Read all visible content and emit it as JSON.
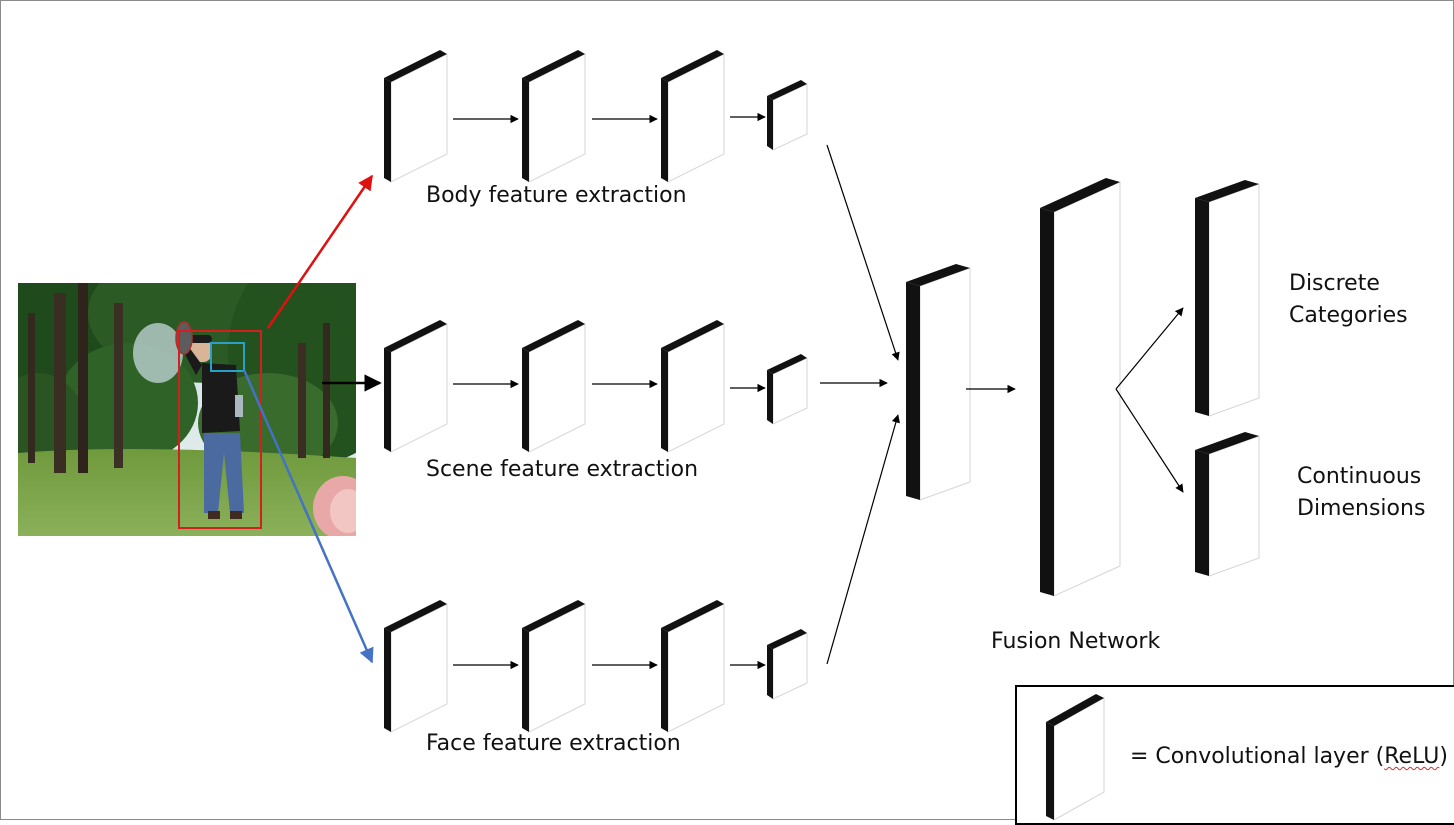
{
  "labels": {
    "body": "Body feature extraction",
    "scene": "Scene feature extraction",
    "face": "Face feature extraction",
    "fusion": "Fusion Network",
    "discrete_line1": "Discrete",
    "discrete_line2": "Categories",
    "continuous_line1": "Continuous",
    "continuous_line2": "Dimensions"
  },
  "legend": {
    "prefix": "= Convolutional layer (",
    "term": "ReLU",
    "suffix": ")"
  },
  "colors": {
    "body_arrow": "#e01010",
    "face_arrow": "#4472c4",
    "person_box": "#d02020",
    "face_box": "#2aa0c8",
    "layer_dark": "#111111"
  }
}
